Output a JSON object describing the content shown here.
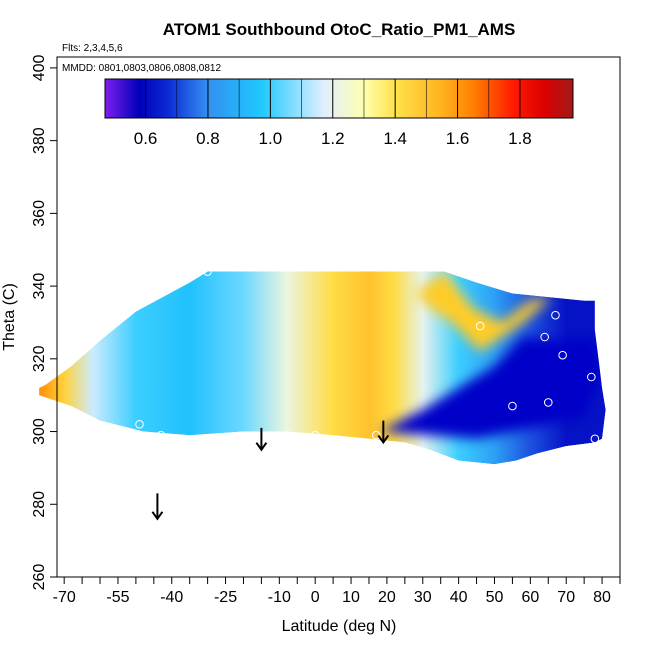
{
  "chart_data": {
    "type": "heatmap",
    "title": "ATOM1 Southbound OtoC_Ratio_PM1_AMS",
    "flights_label": "Flts: 2,3,4,5,6",
    "dates_label": "MMDD: 0801,0803,0806,0808,0812",
    "xlabel": "Latitude (deg N)",
    "ylabel": "Theta (C)",
    "xlim": [
      -72,
      85
    ],
    "ylim": [
      260,
      403
    ],
    "x_ticks_major": [
      "-70",
      "-55",
      "-40",
      "-25",
      "-10",
      "0",
      "10",
      "20",
      "30",
      "40",
      "50",
      "60",
      "70",
      "80"
    ],
    "x_tick_values": [
      -70,
      -55,
      -40,
      -25,
      -10,
      0,
      10,
      20,
      30,
      40,
      50,
      60,
      70,
      80
    ],
    "x_minor_ticks": [
      -65,
      -60,
      -50,
      -45,
      -35,
      -30,
      -20,
      -15,
      -5,
      5,
      15,
      25,
      35,
      45,
      55,
      65,
      75,
      85
    ],
    "y_ticks": [
      "260",
      "280",
      "300",
      "320",
      "340",
      "360",
      "380",
      "400"
    ],
    "y_tick_values": [
      260,
      280,
      300,
      320,
      340,
      360,
      380,
      400
    ],
    "colorbar": {
      "range": [
        0.47,
        1.97
      ],
      "tick_labels": [
        "0.6",
        "0.8",
        "1.0",
        "1.2",
        "1.4",
        "1.6",
        "1.8"
      ],
      "tick_values": [
        0.6,
        0.8,
        1.0,
        1.2,
        1.4,
        1.6,
        1.8
      ],
      "colors": [
        "#7e1ff0",
        "#0000b8",
        "#0d29d6",
        "#3390f0",
        "#1fc8ff",
        "#dfefff",
        "#ffffb0",
        "#ffe24a",
        "#ffb21f",
        "#ff8000",
        "#ff1a00",
        "#d90000",
        "#a31a1a"
      ],
      "color_stops": [
        0.47,
        0.58,
        0.67,
        0.8,
        0.97,
        1.17,
        1.3,
        1.4,
        1.55,
        1.65,
        1.78,
        1.88,
        1.97
      ]
    },
    "field": {
      "outline": [
        [
          -77,
          312
        ],
        [
          -75,
          313
        ],
        [
          -68,
          318
        ],
        [
          -60,
          325
        ],
        [
          -50,
          333
        ],
        [
          -35,
          341
        ],
        [
          -30,
          344
        ],
        [
          30,
          344
        ],
        [
          36,
          344
        ],
        [
          45,
          341
        ],
        [
          55,
          338
        ],
        [
          65,
          337
        ],
        [
          75,
          336
        ],
        [
          78,
          336
        ],
        [
          78,
          328
        ],
        [
          79,
          320
        ],
        [
          80,
          312
        ],
        [
          81,
          306
        ],
        [
          80,
          298
        ],
        [
          78,
          297
        ],
        [
          70,
          296
        ],
        [
          62,
          294
        ],
        [
          56,
          292
        ],
        [
          50,
          291
        ],
        [
          40,
          292
        ],
        [
          32,
          295
        ],
        [
          25,
          297
        ],
        [
          15,
          298
        ],
        [
          5,
          299
        ],
        [
          -8,
          300
        ],
        [
          -20,
          300
        ],
        [
          -35,
          299
        ],
        [
          -48,
          300
        ],
        [
          -60,
          303
        ],
        [
          -68,
          307
        ],
        [
          -77,
          310
        ]
      ],
      "gradient_stops": [
        {
          "lat": -77,
          "value": 1.62
        },
        {
          "lat": -70,
          "value": 1.45
        },
        {
          "lat": -62,
          "value": 1.15
        },
        {
          "lat": -50,
          "value": 1.0
        },
        {
          "lat": -35,
          "value": 0.95
        },
        {
          "lat": -20,
          "value": 1.05
        },
        {
          "lat": -8,
          "value": 1.22
        },
        {
          "lat": 5,
          "value": 1.42
        },
        {
          "lat": 15,
          "value": 1.5
        },
        {
          "lat": 22,
          "value": 1.42
        },
        {
          "lat": 30,
          "value": 1.2
        },
        {
          "lat": 40,
          "value": 1.0
        },
        {
          "lat": 50,
          "value": 0.85
        },
        {
          "lat": 60,
          "value": 0.72
        },
        {
          "lat": 70,
          "value": 0.62
        },
        {
          "lat": 80,
          "value": 0.62
        }
      ],
      "low_core": [
        [
          18,
          300
        ],
        [
          45,
          298
        ],
        [
          65,
          302
        ],
        [
          75,
          304
        ],
        [
          80,
          316
        ],
        [
          78,
          326
        ],
        [
          70,
          325
        ],
        [
          58,
          326
        ],
        [
          50,
          318
        ],
        [
          40,
          312
        ],
        [
          30,
          306
        ]
      ],
      "high_arm": [
        [
          28,
          338
        ],
        [
          36,
          344
        ],
        [
          44,
          334
        ],
        [
          52,
          330
        ],
        [
          60,
          336
        ],
        [
          66,
          337
        ],
        [
          58,
          330
        ],
        [
          52,
          326
        ],
        [
          46,
          322
        ],
        [
          38,
          330
        ],
        [
          32,
          334
        ]
      ]
    },
    "observations": [
      {
        "lat": -30,
        "theta": 344
      },
      {
        "lat": -49,
        "theta": 302
      },
      {
        "lat": -43,
        "theta": 299
      },
      {
        "lat": 0,
        "theta": 299
      },
      {
        "lat": 17,
        "theta": 299
      },
      {
        "lat": 46,
        "theta": 329
      },
      {
        "lat": 55,
        "theta": 307
      },
      {
        "lat": 64,
        "theta": 326
      },
      {
        "lat": 65,
        "theta": 308
      },
      {
        "lat": 67,
        "theta": 332
      },
      {
        "lat": 69,
        "theta": 321
      },
      {
        "lat": 77,
        "theta": 315
      },
      {
        "lat": 78,
        "theta": 298
      }
    ],
    "arrows": [
      {
        "lat": -44,
        "theta_top": 283,
        "theta_bottom": 276
      },
      {
        "lat": -15,
        "theta_top": 301,
        "theta_bottom": 295
      },
      {
        "lat": 19,
        "theta_top": 303,
        "theta_bottom": 297
      }
    ]
  }
}
